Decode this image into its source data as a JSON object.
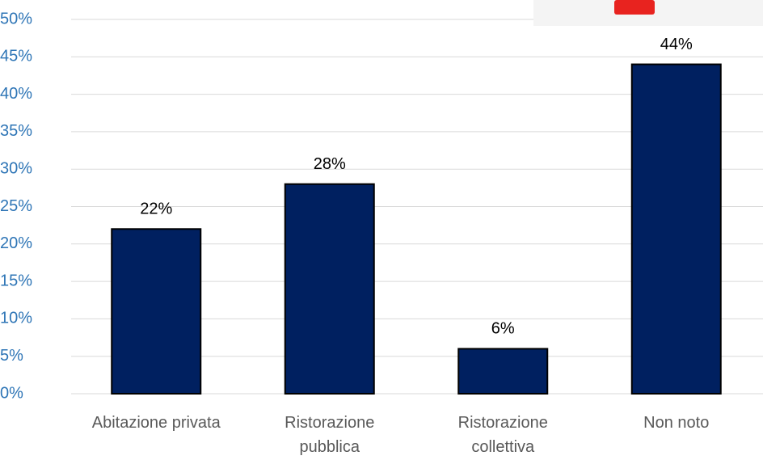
{
  "chart_data": {
    "type": "bar",
    "categories": [
      "Abitazione privata",
      "Ristorazione pubblica",
      "Ristorazione collettiva",
      "Non noto"
    ],
    "values": [
      22,
      28,
      6,
      44
    ],
    "value_labels": [
      "22%",
      "28%",
      "6%",
      "44%"
    ],
    "color": "#002060",
    "ylim": [
      0,
      50
    ],
    "yticks": [
      {
        "value": 0,
        "label": "0%"
      },
      {
        "value": 5,
        "label": "5%"
      },
      {
        "value": 10,
        "label": "10%"
      },
      {
        "value": 15,
        "label": "15%"
      },
      {
        "value": 20,
        "label": "20%"
      },
      {
        "value": 25,
        "label": "25%"
      },
      {
        "value": 30,
        "label": "30%"
      },
      {
        "value": 35,
        "label": "35%"
      },
      {
        "value": 40,
        "label": "40%"
      },
      {
        "value": 45,
        "label": "45%"
      },
      {
        "value": 50,
        "label": "50%"
      }
    ],
    "grid": true
  }
}
